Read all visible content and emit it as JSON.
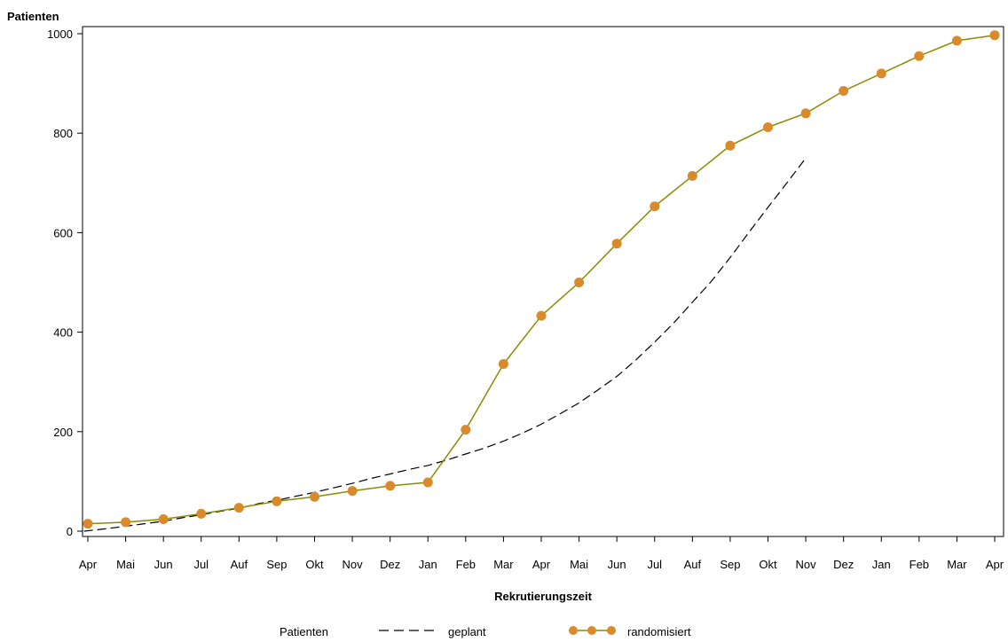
{
  "chart_data": {
    "type": "line",
    "ylabel": "Patienten",
    "xlabel": "Rekrutierungszeit",
    "ylim": [
      0,
      1000
    ],
    "yticks": [
      0,
      200,
      400,
      600,
      800,
      1000
    ],
    "categories": [
      "Apr",
      "Mai",
      "Jun",
      "Jul",
      "Auf",
      "Sep",
      "Okt",
      "Nov",
      "Dez",
      "Jan",
      "Feb",
      "Mar",
      "Apr",
      "Mai",
      "Jun",
      "Jul",
      "Auf",
      "Sep",
      "Okt",
      "Nov",
      "Dez",
      "Jan",
      "Feb",
      "Mar",
      "Apr"
    ],
    "grid": false,
    "legend": {
      "title": "Patienten",
      "placement": "bottom"
    },
    "series": [
      {
        "name": "geplant",
        "style": "dashed",
        "color": "#000000",
        "x": [
          -0.1,
          0.5,
          1.0,
          1.5,
          2.0,
          2.5,
          3.0,
          3.5,
          4.0,
          4.5,
          5.0,
          5.5,
          6.0,
          6.5,
          7.0,
          7.5,
          8.0,
          8.5,
          9.0,
          9.5,
          10.0,
          10.5,
          11.0,
          11.5,
          12.0,
          12.5,
          13.0,
          13.5,
          14.0,
          14.5,
          15.0,
          15.5,
          16.0,
          16.5,
          17.0,
          17.5,
          18.0,
          18.5,
          19.0
        ],
        "values": [
          0,
          5,
          10,
          15,
          20,
          27,
          33,
          40,
          46,
          55,
          62,
          70,
          78,
          87,
          96,
          106,
          115,
          124,
          132,
          143,
          155,
          167,
          181,
          197,
          215,
          236,
          258,
          284,
          311,
          344,
          380,
          418,
          460,
          502,
          550,
          601,
          651,
          700,
          750
        ]
      },
      {
        "name": "randomisiert",
        "style": "solid-markers",
        "color": "#8b8b00",
        "marker_color": "#d98b2b",
        "x": [
          0,
          1,
          2,
          3,
          4,
          5,
          6,
          7,
          8,
          9,
          10,
          11,
          12,
          13,
          14,
          15,
          16,
          17,
          18,
          19,
          20,
          21,
          22,
          23,
          24
        ],
        "values": [
          15,
          18,
          24,
          35,
          47,
          60,
          69,
          81,
          91,
          98,
          204,
          336,
          433,
          500,
          578,
          653,
          714,
          775,
          812,
          840,
          885,
          920,
          955,
          986,
          997
        ]
      }
    ]
  },
  "colors": {
    "axis": "#000000",
    "line_randomisiert": "#8b8b00",
    "marker_randomisiert": "#d98b2b",
    "line_geplant": "#000000"
  }
}
